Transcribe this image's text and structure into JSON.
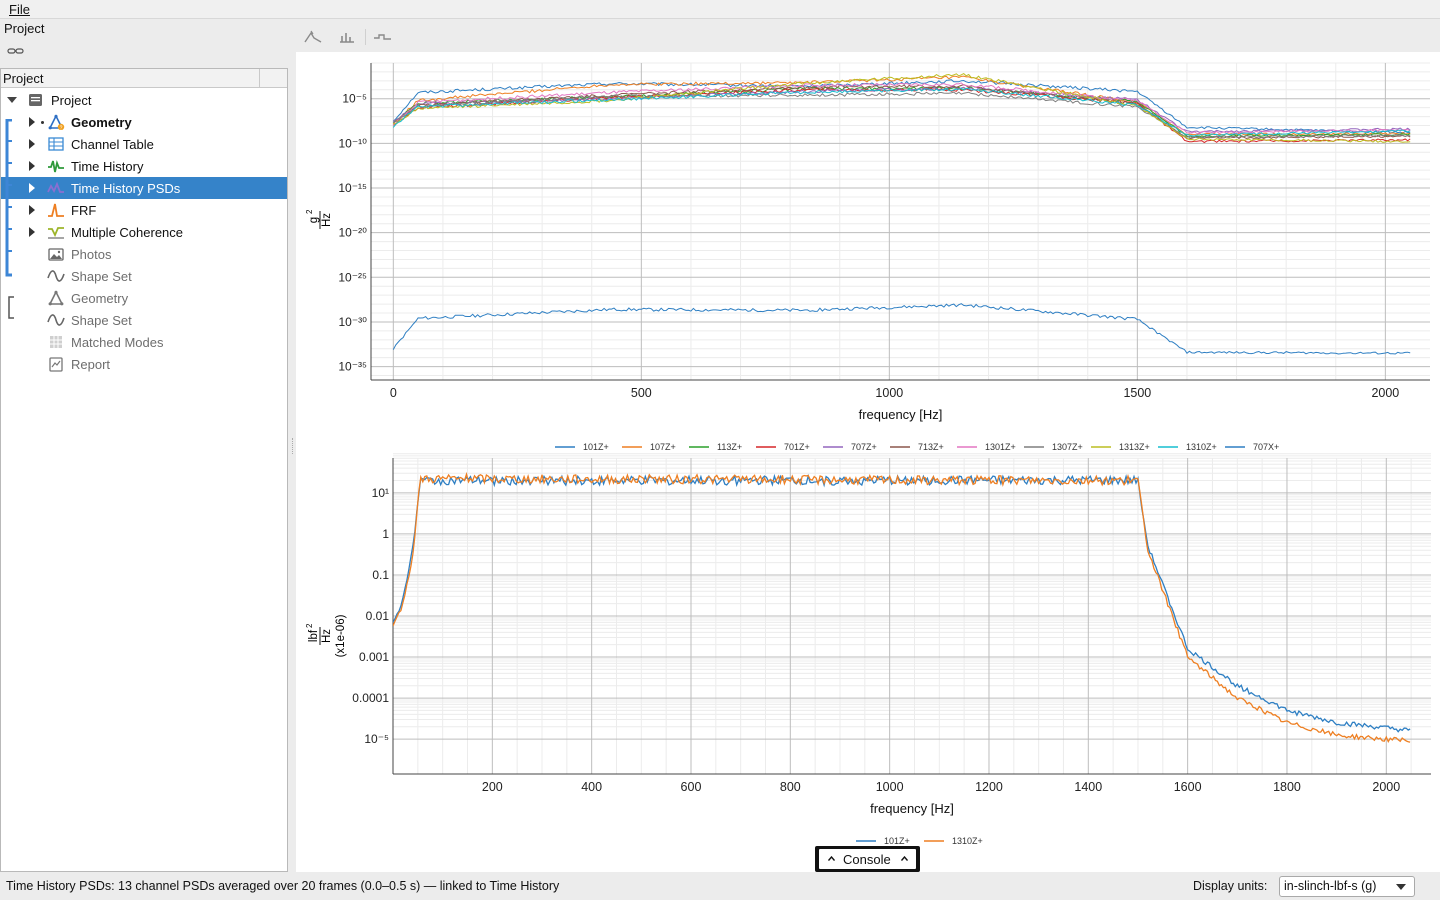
{
  "menu": {
    "file": "File"
  },
  "project_header": "Project",
  "tree": {
    "column_header": "Project",
    "items": [
      {
        "label": "Project",
        "icon": "project-icon",
        "bold": false
      },
      {
        "label": "Geometry",
        "icon": "geometry-icon",
        "bold": true
      },
      {
        "label": "Channel Table",
        "icon": "table-icon",
        "bold": false
      },
      {
        "label": "Time History",
        "icon": "time-history-icon",
        "bold": false
      },
      {
        "label": "Time History PSDs",
        "icon": "psd-icon",
        "bold": false,
        "selected": true
      },
      {
        "label": "FRF",
        "icon": "frf-icon",
        "bold": false
      },
      {
        "label": "Multiple Coherence",
        "icon": "coherence-icon",
        "bold": false
      },
      {
        "label": "Photos",
        "icon": "photos-icon",
        "bold": false,
        "dim": true
      },
      {
        "label": "Shape Set",
        "icon": "shape-set-icon",
        "bold": false,
        "dim": true
      },
      {
        "label": "Geometry",
        "icon": "geometry-icon",
        "bold": false,
        "dim": true
      },
      {
        "label": "Shape Set",
        "icon": "shape-set-icon",
        "bold": false,
        "dim": true
      },
      {
        "label": "Matched Modes",
        "icon": "matched-modes-icon",
        "bold": false,
        "dim": true
      },
      {
        "label": "Report",
        "icon": "report-icon",
        "bold": false,
        "dim": true
      }
    ]
  },
  "status": {
    "text": "Time History PSDs: 13 channel PSDs averaged over 20 frames (0.0–0.5 s) — linked to Time History",
    "units_label": "Display units:",
    "units_value": "in-slinch-lbf-s (g)"
  },
  "console": {
    "label": "Console"
  },
  "colors": {
    "selection": "#3583c9",
    "accent_bracket": "#3d86d6",
    "series": [
      "#2e7fc3",
      "#ee7f22",
      "#2ca02c",
      "#d62728",
      "#9467bd",
      "#8c564b",
      "#e377c2",
      "#7f7f7f",
      "#bcbd22",
      "#17becf"
    ]
  },
  "chart_data": [
    {
      "type": "line",
      "title": "",
      "xlabel": "frequency [Hz]",
      "ylabel": "g²/Hz",
      "ylabel_num": "g",
      "ylabel_den": "Hz",
      "yscale": "log",
      "xlim": [
        -45,
        2090
      ],
      "ylim_exponent": [
        -36.5,
        -1
      ],
      "x_ticks": [
        "0",
        "500",
        "1000",
        "1500",
        "2000"
      ],
      "y_ticks": [
        "10⁻⁵",
        "10⁻¹⁰",
        "10⁻¹⁵",
        "10⁻²⁰",
        "10⁻²⁵",
        "10⁻³⁰",
        "10⁻³⁵"
      ],
      "legend_position": "bottom",
      "legend": [
        "101Z+",
        "107Z+",
        "113Z+",
        "701Z+",
        "707Z+",
        "713Z+",
        "1301Z+",
        "1307Z+",
        "1313Z+",
        "1310Z+",
        "707X+"
      ],
      "series_breakpoints_hz": [
        0,
        50,
        440,
        820,
        1150,
        1500,
        1600,
        2050
      ],
      "series": [
        {
          "name": "101Z+",
          "log10_y": [
            -7.5,
            -4.3,
            -3.3,
            -3.6,
            -3.0,
            -4.2,
            -8.2,
            -8.8
          ]
        },
        {
          "name": "107Z+",
          "log10_y": [
            -7.8,
            -5.2,
            -3.4,
            -3.2,
            -2.6,
            -5.4,
            -9.0,
            -8.9
          ]
        },
        {
          "name": "113Z+",
          "log10_y": [
            -7.7,
            -5.5,
            -4.8,
            -3.9,
            -3.8,
            -5.3,
            -9.2,
            -9.0
          ]
        },
        {
          "name": "701Z+",
          "log10_y": [
            -8.0,
            -6.0,
            -4.9,
            -4.0,
            -4.0,
            -5.5,
            -9.8,
            -9.6
          ]
        },
        {
          "name": "707Z+",
          "log10_y": [
            -7.6,
            -5.6,
            -5.0,
            -4.2,
            -3.8,
            -5.1,
            -8.7,
            -8.4
          ]
        },
        {
          "name": "713Z+",
          "log10_y": [
            -7.9,
            -5.7,
            -4.6,
            -3.7,
            -3.6,
            -5.6,
            -9.4,
            -9.2
          ]
        },
        {
          "name": "1301Z+",
          "log10_y": [
            -8.0,
            -5.4,
            -4.3,
            -3.5,
            -3.4,
            -5.2,
            -8.8,
            -8.5
          ]
        },
        {
          "name": "1307Z+",
          "log10_y": [
            -7.8,
            -5.8,
            -4.7,
            -4.6,
            -4.4,
            -5.9,
            -9.3,
            -9.1
          ]
        },
        {
          "name": "1313Z+",
          "log10_y": [
            -7.9,
            -6.1,
            -5.2,
            -3.3,
            -2.3,
            -5.8,
            -9.5,
            -9.8
          ]
        },
        {
          "name": "1310Z+",
          "log10_y": [
            -8.1,
            -5.9,
            -5.1,
            -4.3,
            -3.9,
            -5.7,
            -9.1,
            -8.6
          ]
        },
        {
          "name": "707X+",
          "log10_y": [
            -33.0,
            -29.6,
            -28.6,
            -28.7,
            -28.1,
            -29.7,
            -33.4,
            -33.5
          ]
        }
      ]
    },
    {
      "type": "line",
      "title": "",
      "xlabel": "frequency [Hz]",
      "ylabel": "lbf²/Hz (x1e-06)",
      "ylabel_num": "lbf",
      "ylabel_den": "Hz",
      "ylabel_scale": "(x1e-06)",
      "yscale": "log",
      "xlim": [
        0,
        2090
      ],
      "ylim_exponent": [
        -5.85,
        1.85
      ],
      "x_ticks": [
        "200",
        "400",
        "600",
        "800",
        "1000",
        "1200",
        "1400",
        "1600",
        "1800",
        "2000"
      ],
      "y_ticks": [
        "10¹",
        "1",
        "0.1",
        "0.01",
        "0.001",
        "0.0001",
        "10⁻⁵"
      ],
      "legend_position": "bottom",
      "legend": [
        "101Z+",
        "1310Z+"
      ],
      "series_breakpoints_hz": [
        0,
        20,
        40,
        55,
        1500,
        1520,
        1600,
        1700,
        1800,
        1900,
        2050
      ],
      "series": [
        {
          "name": "101Z+",
          "log10_y": [
            -2.2,
            -1.6,
            -0.3,
            1.3,
            1.3,
            -0.3,
            -2.8,
            -3.7,
            -4.3,
            -4.6,
            -4.8
          ]
        },
        {
          "name": "1310Z+",
          "log10_y": [
            -2.3,
            -1.7,
            -0.5,
            1.35,
            1.3,
            -0.4,
            -3.0,
            -4.0,
            -4.6,
            -4.9,
            -5.05
          ]
        }
      ]
    }
  ]
}
